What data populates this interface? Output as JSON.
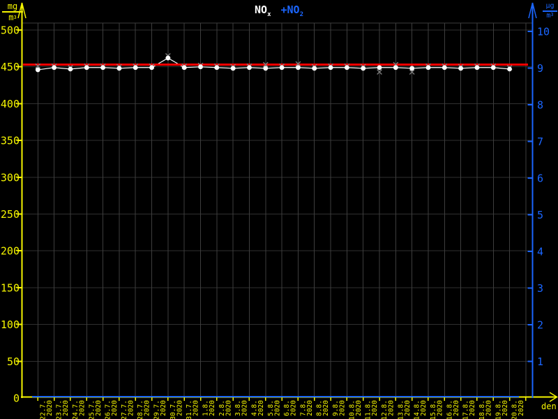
{
  "labels": {
    "series1": "NO",
    "series1_sub": "x",
    "series2": "+NO",
    "series2_sub": "2",
    "left_unit_num": "mg",
    "left_unit_den": "m",
    "left_unit_exp": "3",
    "right_unit_num": "µg",
    "right_unit_den": "m",
    "right_unit_exp": "3",
    "x_axis": "den"
  },
  "colors": {
    "background": "#000000",
    "left_axis": "#f5f500",
    "right_axis": "#1b66ff",
    "reference": "#ff0000",
    "nox_series": "#ffffff",
    "x_marks": "#7a7a7a",
    "grid": "#383838"
  },
  "chart_data": {
    "type": "line",
    "title": "NOx +NO2",
    "x_tick_days": [
      "22.7.",
      "23.7.",
      "24.7.",
      "25.7.",
      "26.7.",
      "27.7.",
      "28.7.",
      "29.7.",
      "30.7.",
      "31.7.",
      "1.8.",
      "2.8.",
      "3.8.",
      "4.8.",
      "5.8.",
      "6.8.",
      "7.8.",
      "8.8.",
      "9.8.",
      "10.8.",
      "11.8.",
      "12.8.",
      "13.8.",
      "14.8.",
      "15.8.",
      "16.8.",
      "17.8.",
      "18.8.",
      "19.8.",
      "20.8."
    ],
    "x_tick_year": "2020",
    "series": [
      {
        "name": "NOx",
        "axis": "left",
        "color": "#ffffff",
        "marker": "circle",
        "values": [
          446,
          449,
          447,
          449,
          449,
          448,
          449,
          449,
          462,
          449,
          450,
          449,
          448,
          449,
          448,
          449,
          449,
          448,
          449,
          449,
          448,
          449,
          449,
          448,
          449,
          449,
          448,
          449,
          449,
          447
        ]
      },
      {
        "name": "NOx-gray-x-marks",
        "axis": "left",
        "color": "#7a7a7a",
        "marker": "x",
        "values": [
          451,
          451,
          449,
          451,
          451,
          450,
          451,
          451,
          465,
          451,
          452,
          451,
          450,
          451,
          453,
          451,
          454,
          450,
          451,
          451,
          450,
          443,
          453,
          443,
          451,
          451,
          450,
          451,
          451,
          449
        ]
      },
      {
        "name": "NO2",
        "axis": "right",
        "color": "#1b66ff",
        "marker": "none",
        "values": [
          0,
          0,
          0,
          0,
          0,
          0,
          0,
          0,
          0,
          0,
          0,
          0,
          0,
          0,
          0,
          0,
          0,
          0,
          0,
          0,
          0,
          0,
          0,
          0,
          0,
          0,
          0,
          0,
          0,
          0
        ]
      }
    ],
    "reference_line": {
      "axis": "left",
      "value": 453,
      "color": "#ff0000"
    },
    "left_axis": {
      "unit": "mg/m3",
      "min": 0,
      "max": 500,
      "step": 50,
      "color": "#f5f500"
    },
    "right_axis": {
      "unit": "µg/m3",
      "min": 0,
      "max": 10,
      "step": 1,
      "color": "#1b66ff"
    },
    "x_axis_label": "den",
    "grid": true,
    "legend_position": "top-center"
  }
}
